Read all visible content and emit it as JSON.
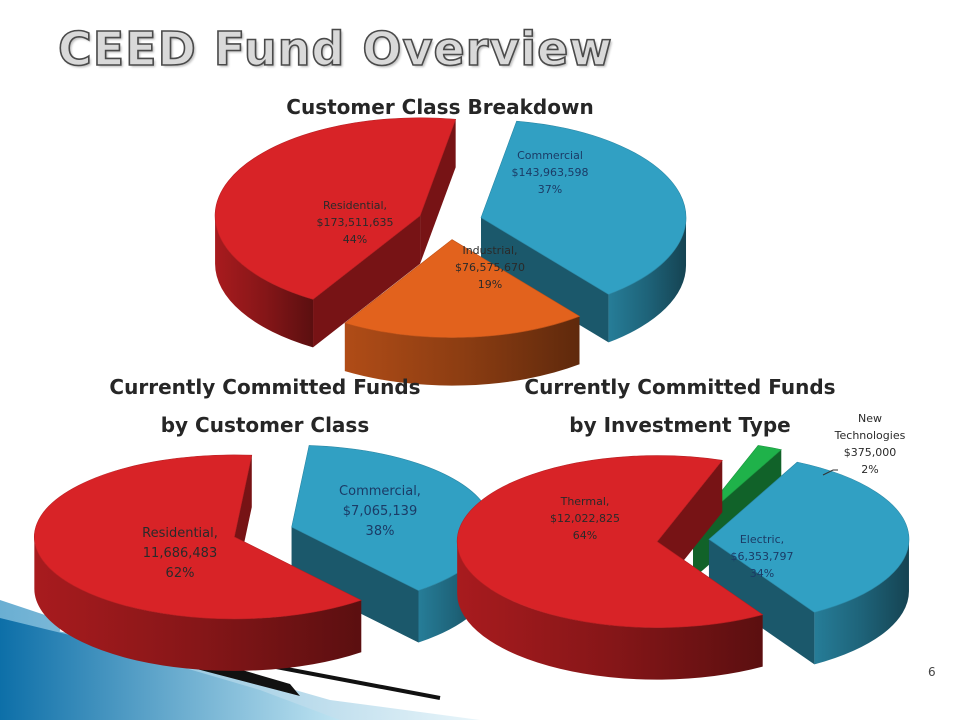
{
  "slide": {
    "title": "CEED Fund Overview",
    "page_number": "6"
  },
  "chart_data": [
    {
      "type": "pie",
      "title": "Customer Class Breakdown",
      "slices": [
        {
          "name": "Commercial",
          "value": 143963598,
          "percent": 37,
          "value_label": "$143,963,598",
          "percent_label": "37%",
          "name_label": "Commercial",
          "color": "#31a0c3"
        },
        {
          "name": "Industrial",
          "value": 76575670,
          "percent": 19,
          "value_label": "$76,575,670",
          "percent_label": "19%",
          "name_label": "Industrial,",
          "color": "#e2621d"
        },
        {
          "name": "Residential",
          "value": 173511635,
          "percent": 44,
          "value_label": "$173,511,635",
          "percent_label": "44%",
          "name_label": "Residential,",
          "color": "#d82327"
        }
      ]
    },
    {
      "type": "pie",
      "title": "Currently Committed Funds by Customer Class",
      "title_lines": [
        "Currently Committed Funds",
        "by Customer Class"
      ],
      "slices": [
        {
          "name": "Commercial",
          "value": 7065139,
          "percent": 38,
          "value_label": "$7,065,139",
          "percent_label": "38%",
          "name_label": "Commercial,",
          "color": "#31a0c3"
        },
        {
          "name": "Residential",
          "value": 11686483,
          "percent": 62,
          "value_label": "11,686,483",
          "percent_label": "62%",
          "name_label": "Residential,",
          "color": "#d82327"
        }
      ]
    },
    {
      "type": "pie",
      "title": "Currently Committed Funds by Investment Type",
      "title_lines": [
        "Currently Committed Funds",
        "by Investment Type"
      ],
      "slices": [
        {
          "name": "New Technologies",
          "value": 375000,
          "percent": 2,
          "value_label": "$375,000",
          "percent_label": "2%",
          "name_label_lines": [
            "New",
            "Technologies"
          ],
          "color": "#1fb24a"
        },
        {
          "name": "Electric",
          "value": 6353797,
          "percent": 34,
          "value_label": "$6,353,797",
          "percent_label": "34%",
          "name_label": "Electric,",
          "color": "#31a0c3"
        },
        {
          "name": "Thermal",
          "value": 12022825,
          "percent": 64,
          "value_label": "$12,022,825",
          "percent_label": "64%",
          "name_label": "Thermal,",
          "color": "#d82327"
        }
      ]
    }
  ]
}
